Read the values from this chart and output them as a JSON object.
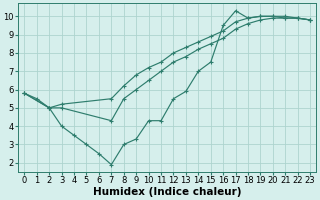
{
  "xlabel": "Humidex (Indice chaleur)",
  "line1_x": [
    0,
    1,
    2,
    3,
    4,
    5,
    6,
    7,
    8,
    9,
    10,
    11,
    12,
    13,
    14,
    15,
    16,
    17,
    18,
    19,
    20,
    21,
    22,
    23
  ],
  "line1_y": [
    5.8,
    5.5,
    5.0,
    4.0,
    3.5,
    3.0,
    2.5,
    1.9,
    3.0,
    3.3,
    4.3,
    4.3,
    5.5,
    5.9,
    7.0,
    7.5,
    9.5,
    10.3,
    9.9,
    10.0,
    10.0,
    9.9,
    9.9,
    9.8
  ],
  "line2_x": [
    0,
    2,
    3,
    7,
    8,
    9,
    10,
    11,
    12,
    13,
    14,
    15,
    16,
    17,
    18,
    19,
    20,
    21,
    22,
    23
  ],
  "line2_y": [
    5.8,
    5.0,
    5.0,
    4.3,
    5.5,
    6.0,
    6.5,
    7.0,
    7.5,
    7.8,
    8.2,
    8.5,
    8.8,
    9.3,
    9.6,
    9.8,
    9.9,
    9.9,
    9.9,
    9.8
  ],
  "line3_x": [
    0,
    2,
    3,
    7,
    8,
    9,
    10,
    11,
    12,
    13,
    14,
    15,
    16,
    17,
    18,
    19,
    20,
    21,
    22,
    23
  ],
  "line3_y": [
    5.8,
    5.0,
    5.2,
    5.5,
    6.2,
    6.8,
    7.2,
    7.5,
    8.0,
    8.3,
    8.6,
    8.9,
    9.2,
    9.7,
    9.9,
    10.0,
    10.0,
    10.0,
    9.9,
    9.8
  ],
  "line_color": "#2e7d6d",
  "bg_color": "#d6efec",
  "grid_color": "#aed4cf",
  "marker": "+",
  "marker_size": 3.5,
  "marker_lw": 0.8,
  "line_lw": 0.85,
  "xlim": [
    -0.5,
    23.5
  ],
  "ylim": [
    1.5,
    10.7
  ],
  "xticks": [
    0,
    1,
    2,
    3,
    4,
    5,
    6,
    7,
    8,
    9,
    10,
    11,
    12,
    13,
    14,
    15,
    16,
    17,
    18,
    19,
    20,
    21,
    22,
    23
  ],
  "yticks": [
    2,
    3,
    4,
    5,
    6,
    7,
    8,
    9,
    10
  ],
  "tick_fontsize": 6,
  "xlabel_fontsize": 7.5,
  "figsize": [
    3.2,
    2.0
  ],
  "dpi": 100
}
